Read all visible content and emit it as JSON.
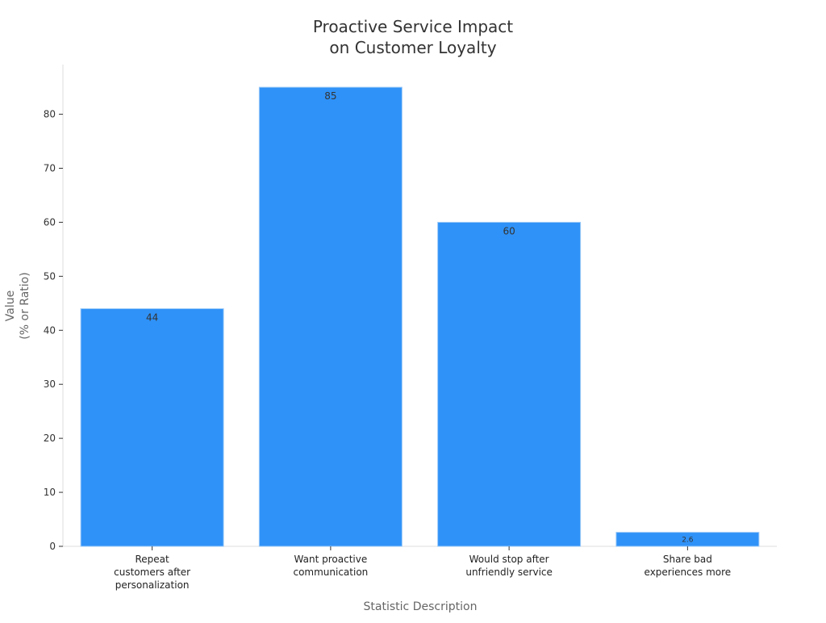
{
  "chart_data": {
    "type": "bar",
    "title": [
      "Proactive Service Impact",
      "on Customer Loyalty"
    ],
    "xlabel": "Statistic Description",
    "ylabel": [
      "Value",
      "(% or Ratio)"
    ],
    "categories": [
      [
        "Repeat",
        "customers after",
        "personalization"
      ],
      [
        "Want proactive",
        "communication"
      ],
      [
        "Would stop after",
        "unfriendly service"
      ],
      [
        "Share bad",
        "experiences more"
      ]
    ],
    "values": [
      44,
      85,
      60,
      2.6
    ],
    "value_labels": [
      "44",
      "85",
      "60",
      "2.6"
    ],
    "yticks": [
      0,
      10,
      20,
      30,
      40,
      50,
      60,
      70,
      80
    ],
    "ylim": [
      0,
      89.2
    ],
    "grid": false,
    "bar_color": "#2f92f8"
  }
}
